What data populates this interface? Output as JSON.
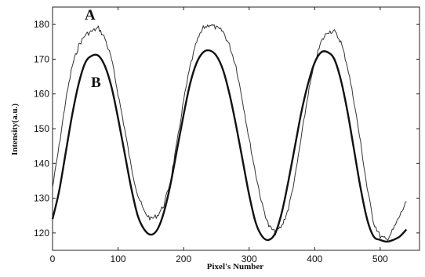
{
  "chart_data": {
    "type": "line",
    "title": "",
    "xlabel": "Pixel's Number",
    "ylabel": "Intensity(a.u.)",
    "xlim": [
      0,
      560
    ],
    "ylim": [
      115,
      185
    ],
    "x_ticks": [
      0,
      100,
      200,
      300,
      400,
      500
    ],
    "y_ticks": [
      120,
      130,
      140,
      150,
      160,
      170,
      180
    ],
    "grid": false,
    "series": [
      {
        "name": "A",
        "style": "thin-noisy",
        "color": "#333333",
        "x": [
          0,
          10,
          20,
          30,
          40,
          50,
          60,
          70,
          80,
          90,
          100,
          110,
          120,
          130,
          140,
          150,
          160,
          170,
          180,
          190,
          200,
          210,
          220,
          230,
          240,
          250,
          260,
          270,
          280,
          290,
          300,
          310,
          320,
          330,
          340,
          350,
          360,
          370,
          380,
          390,
          400,
          410,
          420,
          430,
          440,
          450,
          460,
          470,
          480,
          490,
          500,
          510,
          520,
          530,
          540
        ],
        "y": [
          133,
          145,
          158,
          168,
          174,
          177,
          178,
          179,
          176,
          170,
          160,
          150,
          139,
          131,
          126,
          124,
          125,
          128,
          135,
          146,
          158,
          168,
          175,
          179,
          180,
          179,
          178,
          174,
          168,
          158,
          147,
          137,
          128,
          122,
          120,
          122,
          127,
          136,
          148,
          160,
          169,
          175,
          178,
          178,
          175,
          168,
          158,
          146,
          133,
          123,
          119,
          118,
          121,
          125,
          129
        ]
      },
      {
        "name": "B",
        "style": "thick-smooth",
        "color": "#111111",
        "x": [
          0,
          10,
          20,
          30,
          40,
          50,
          60,
          70,
          80,
          90,
          100,
          110,
          120,
          130,
          140,
          150,
          160,
          170,
          180,
          190,
          200,
          210,
          220,
          230,
          240,
          250,
          260,
          270,
          280,
          290,
          300,
          310,
          320,
          330,
          340,
          350,
          360,
          370,
          380,
          390,
          400,
          410,
          420,
          430,
          440,
          450,
          460,
          470,
          480,
          490,
          500,
          510,
          520,
          530,
          540
        ],
        "y": [
          124,
          132,
          143,
          154,
          163,
          169,
          171,
          171,
          168,
          162,
          153,
          143,
          133,
          125,
          121,
          119.5,
          121,
          126,
          134,
          144,
          154,
          163,
          169,
          172,
          172.5,
          171,
          167,
          160,
          151,
          141,
          131,
          123,
          119,
          118,
          120,
          126,
          135,
          145,
          155,
          163,
          169,
          172,
          172,
          170,
          164,
          155,
          144,
          133,
          124,
          119,
          118,
          117.5,
          118,
          119,
          121
        ]
      }
    ]
  }
}
